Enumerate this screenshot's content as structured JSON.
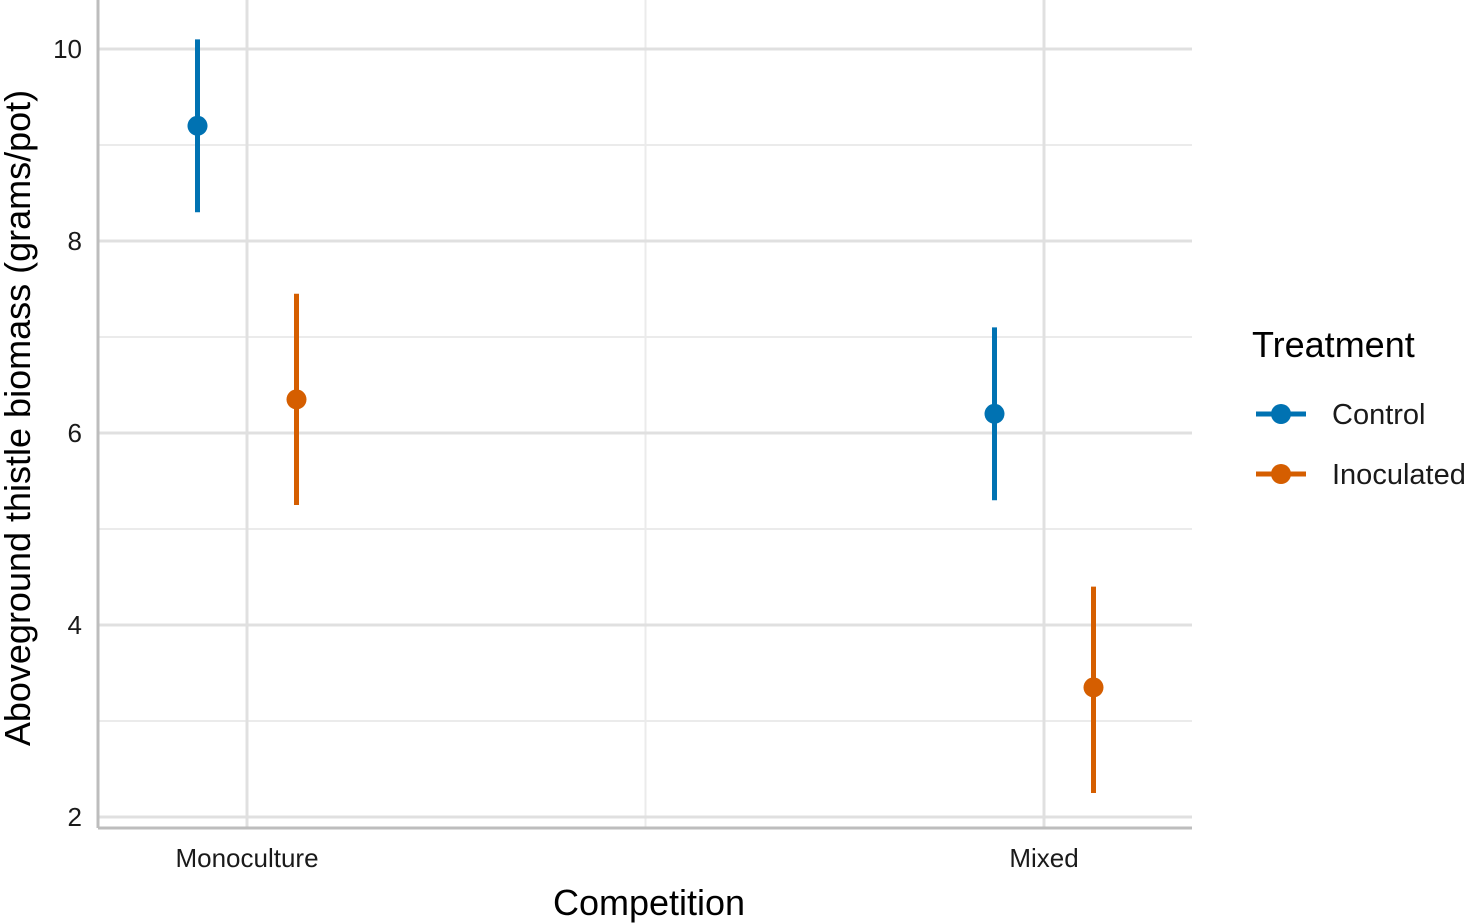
{
  "chart_data": {
    "type": "scatter",
    "title": "",
    "xlabel": "Competition",
    "ylabel": "Aboveground thistle biomass (grams/pot)",
    "categories": [
      "Monoculture",
      "Mixed"
    ],
    "ylim": [
      2,
      10.4
    ],
    "yticks": [
      2,
      4,
      6,
      8,
      10
    ],
    "grid": true,
    "legend": {
      "title": "Treatment",
      "placement": "right"
    },
    "series": [
      {
        "name": "Control",
        "color": "#0072B2",
        "values": [
          9.2,
          6.2
        ],
        "lower": [
          8.3,
          5.3
        ],
        "upper": [
          10.1,
          7.1
        ]
      },
      {
        "name": "Inoculated",
        "color": "#D55E00",
        "values": [
          6.35,
          3.35
        ],
        "lower": [
          5.25,
          2.25
        ],
        "upper": [
          7.45,
          4.4
        ]
      }
    ]
  }
}
